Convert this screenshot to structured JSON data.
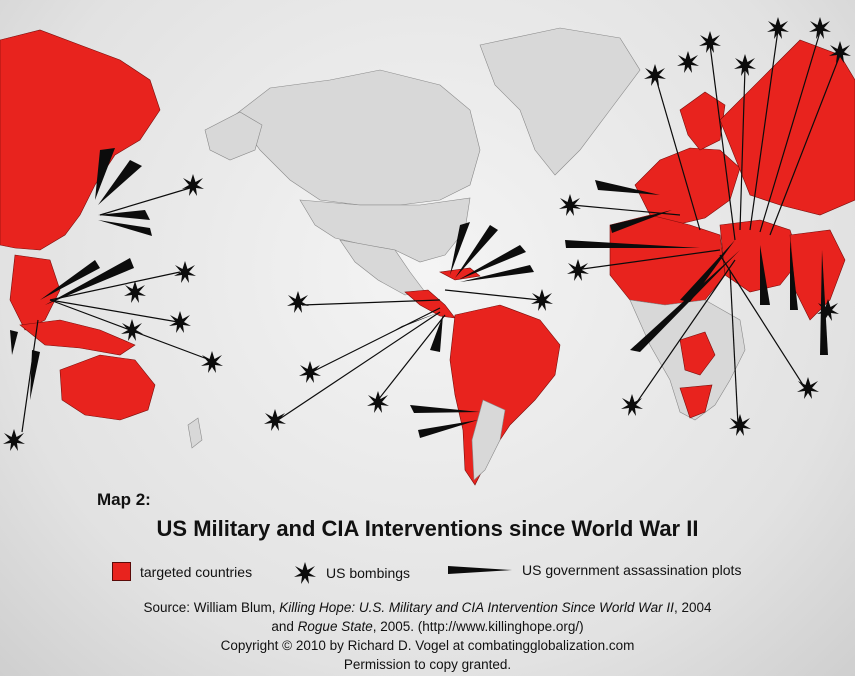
{
  "map": {
    "map_number": "Map 2:",
    "title": "US Military and CIA Interventions since World War II",
    "colors": {
      "targeted": "#e8231e",
      "non_targeted": "#d8d8d8",
      "marker": "#0c0c0c"
    },
    "legend": {
      "targeted": "targeted countries",
      "bombings": "US bombings",
      "plots": "US government assassination plots"
    },
    "source": {
      "prefix": "Source:  William Blum, ",
      "book1": "Killing Hope: U.S. Military and CIA Intervention Since World War II",
      "book1_year": ", 2004",
      "and": "and ",
      "book2": "Rogue State",
      "book2_year": ", 2005. (http://www.killinghope.org/)",
      "copyright": "Copyright  ©  2010 by Richard D. Vogel at combatingglobalization.com",
      "permission": "Permission to copy granted."
    }
  }
}
